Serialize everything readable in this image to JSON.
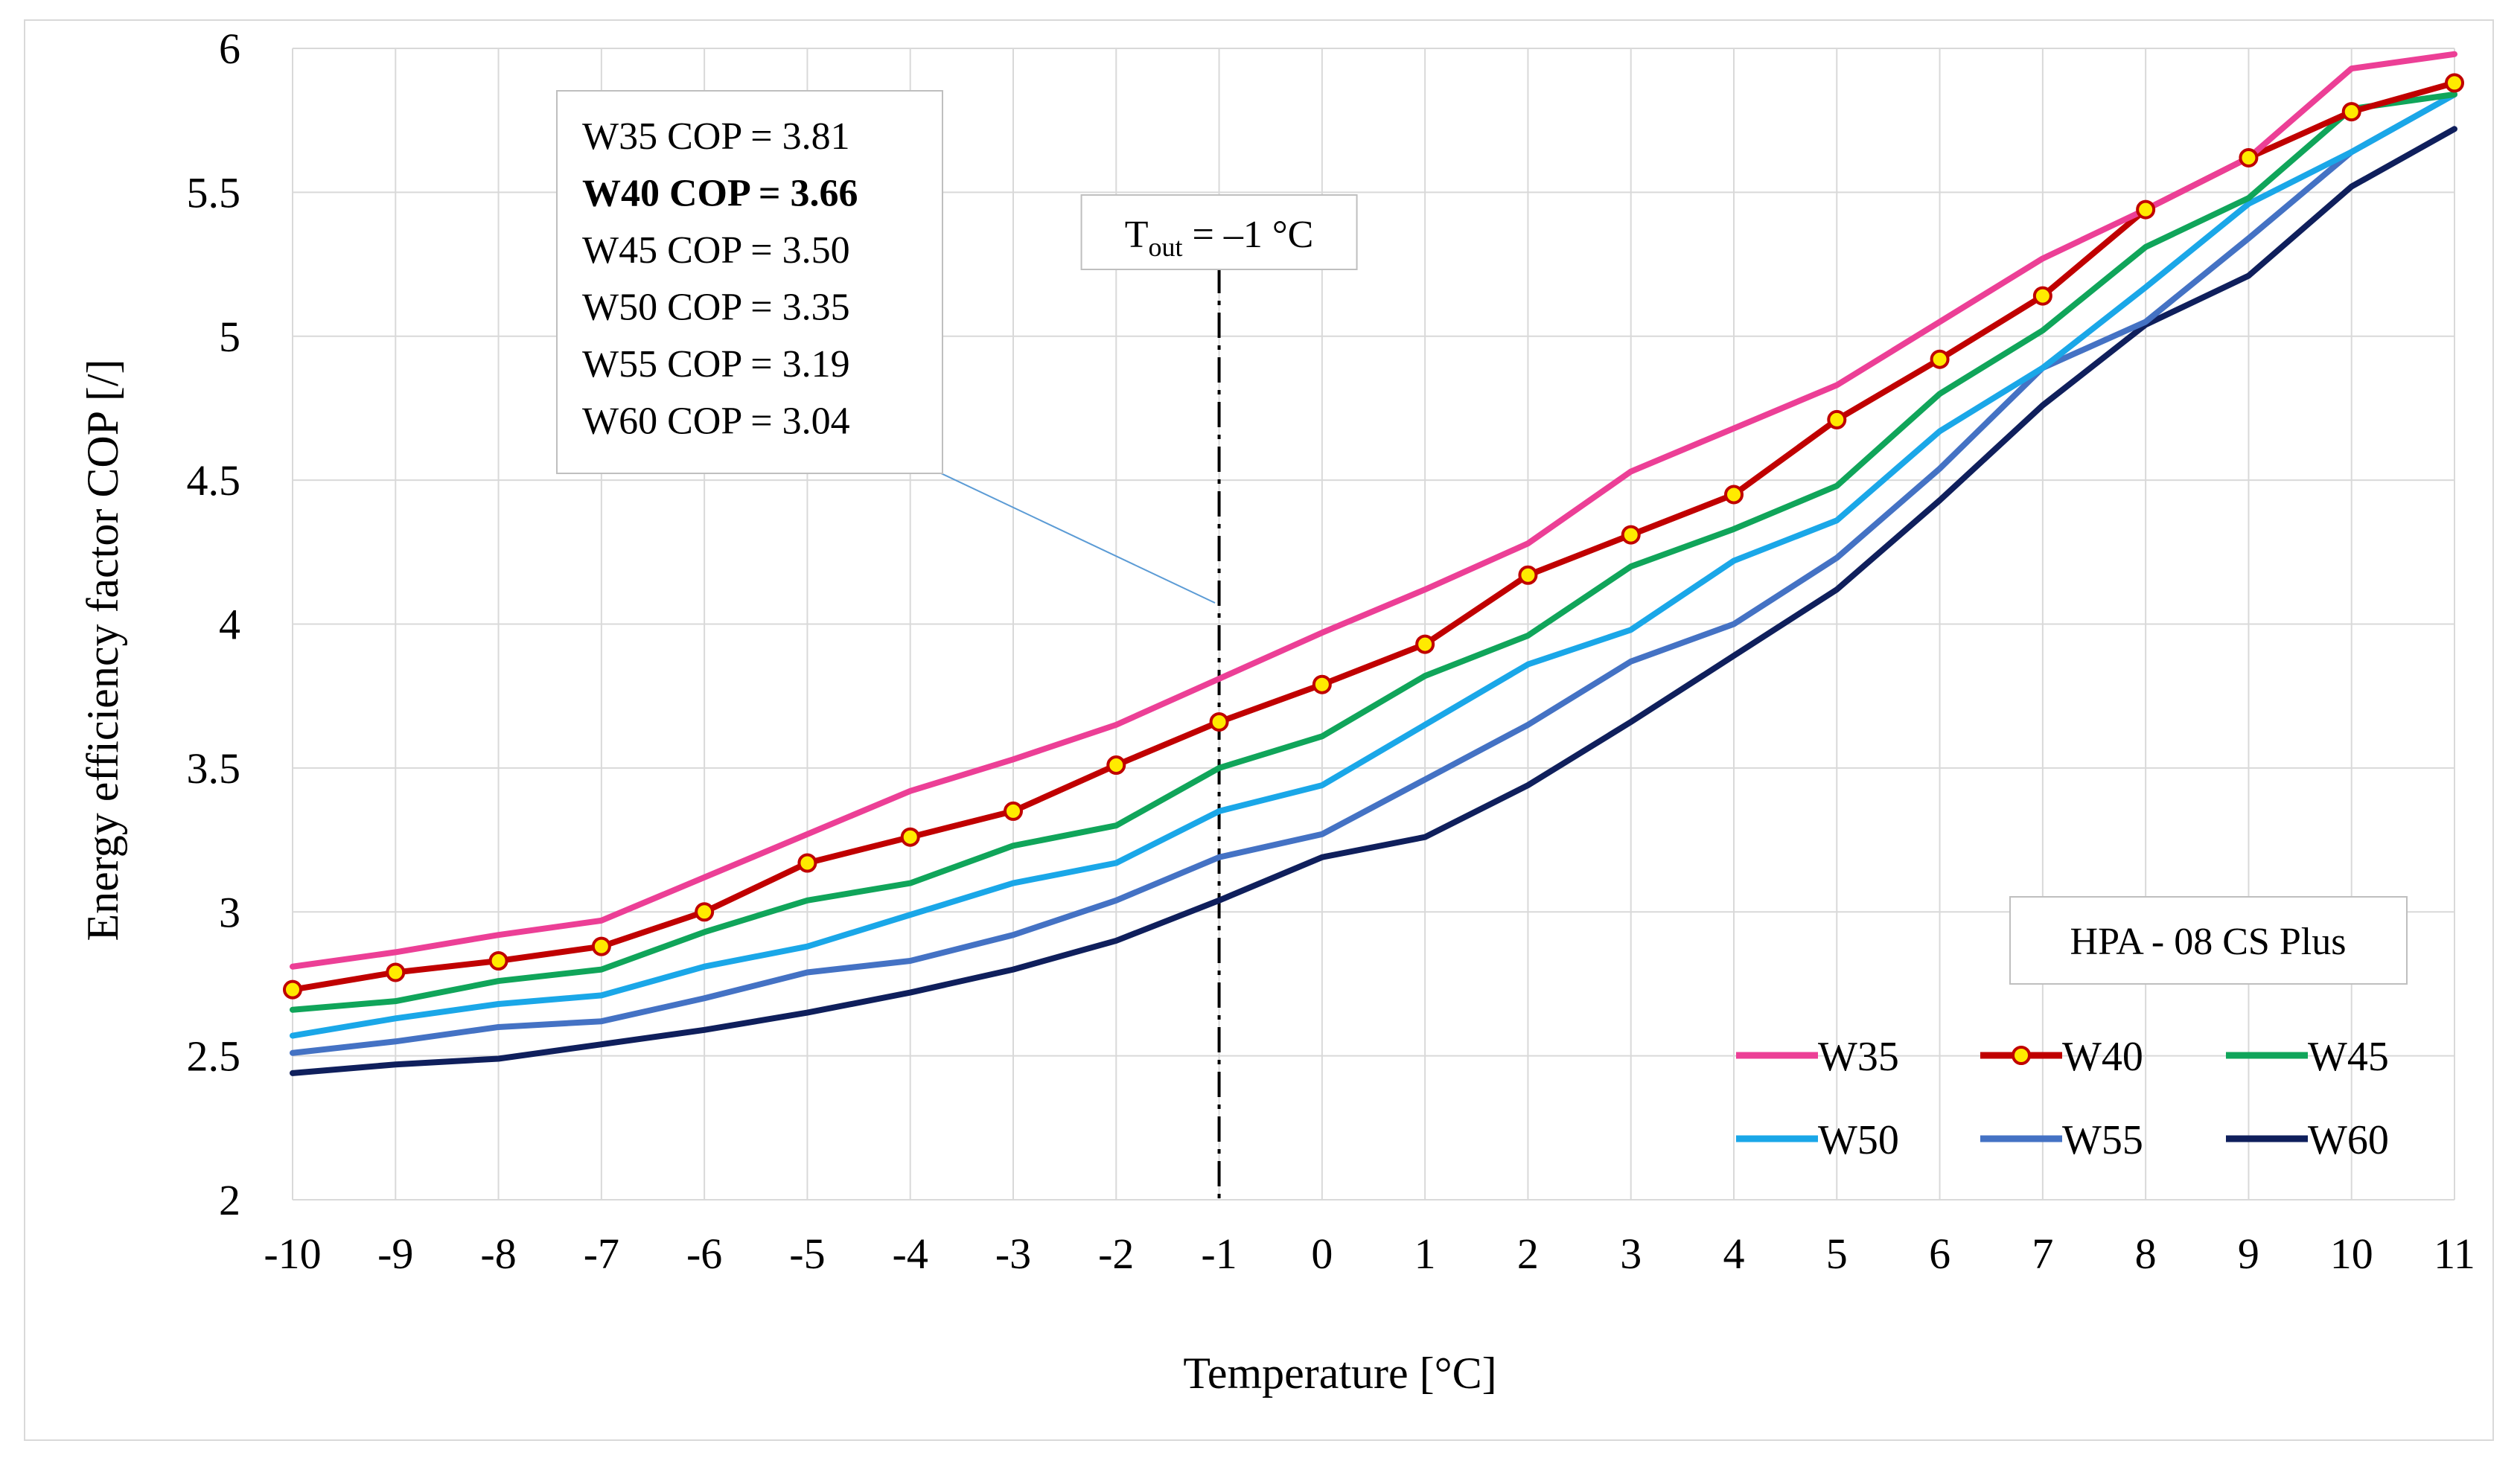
{
  "chart_data": {
    "type": "line",
    "title": "",
    "xlabel": "Temperature [°C]",
    "ylabel": "Energy efficiency factor COP [/]",
    "x": [
      -10,
      -9,
      -8,
      -7,
      -6,
      -5,
      -4,
      -3,
      -2,
      -1,
      0,
      1,
      2,
      3,
      4,
      5,
      6,
      7,
      8,
      9,
      10,
      11
    ],
    "x_tick_labels": [
      "-10",
      "-9",
      "-8",
      "-7",
      "-6",
      "-5",
      "-4",
      "-3",
      "-2",
      "-1",
      "0",
      "1",
      "2",
      "3",
      "4",
      "5",
      "6",
      "7",
      "8",
      "9",
      "10",
      "11"
    ],
    "ylim": [
      2,
      6
    ],
    "y_ticks": [
      2,
      2.5,
      3,
      3.5,
      4,
      4.5,
      5,
      5.5,
      6
    ],
    "y_tick_labels": [
      "2",
      "2.5",
      "3",
      "3.5",
      "4",
      "4.5",
      "5",
      "5.5",
      "6"
    ],
    "grid": true,
    "legend_position": "bottom-right",
    "series": [
      {
        "name": "W35",
        "color": "#ec3f96",
        "markers": false,
        "values": [
          2.81,
          2.86,
          2.92,
          2.97,
          3.12,
          3.27,
          3.42,
          3.53,
          3.65,
          3.81,
          3.97,
          4.12,
          4.28,
          4.53,
          4.68,
          4.83,
          5.05,
          5.27,
          5.44,
          5.62,
          5.93,
          5.98
        ]
      },
      {
        "name": "W40",
        "color": "#c00000",
        "markers": true,
        "marker_color": "#ffea00",
        "values": [
          2.73,
          2.79,
          2.83,
          2.88,
          3.0,
          3.17,
          3.26,
          3.35,
          3.51,
          3.66,
          3.79,
          3.93,
          4.17,
          4.31,
          4.45,
          4.71,
          4.92,
          5.14,
          5.44,
          5.62,
          5.78,
          5.88
        ]
      },
      {
        "name": "W45",
        "color": "#10a55a",
        "markers": false,
        "values": [
          2.66,
          2.69,
          2.76,
          2.8,
          2.93,
          3.04,
          3.1,
          3.23,
          3.3,
          3.5,
          3.61,
          3.82,
          3.96,
          4.2,
          4.33,
          4.48,
          4.8,
          5.02,
          5.31,
          5.48,
          5.79,
          5.84
        ]
      },
      {
        "name": "W50",
        "color": "#1aa7e8",
        "markers": false,
        "values": [
          2.57,
          2.63,
          2.68,
          2.71,
          2.81,
          2.88,
          2.99,
          3.1,
          3.17,
          3.35,
          3.44,
          3.65,
          3.86,
          3.98,
          4.22,
          4.36,
          4.67,
          4.89,
          5.17,
          5.46,
          5.64,
          5.84
        ]
      },
      {
        "name": "W55",
        "color": "#4472c4",
        "markers": false,
        "values": [
          2.51,
          2.55,
          2.6,
          2.62,
          2.7,
          2.79,
          2.83,
          2.92,
          3.04,
          3.19,
          3.27,
          3.46,
          3.65,
          3.87,
          4.0,
          4.23,
          4.54,
          4.89,
          5.05,
          5.34,
          5.64,
          5.84
        ]
      },
      {
        "name": "W60",
        "color": "#0f1f5c",
        "markers": false,
        "values": [
          2.44,
          2.47,
          2.49,
          2.54,
          2.59,
          2.65,
          2.72,
          2.8,
          2.9,
          3.04,
          3.19,
          3.26,
          3.44,
          3.66,
          3.89,
          4.12,
          4.43,
          4.76,
          5.04,
          5.21,
          5.52,
          5.72
        ]
      }
    ],
    "reference_line": {
      "x": -1,
      "label_main": "T",
      "label_sub": "out",
      "label_rest": " = –1 °C"
    },
    "info_box": {
      "lines": [
        {
          "text": "W35 COP = 3.81",
          "bold": false
        },
        {
          "text": "W40 COP = 3.66",
          "bold": true
        },
        {
          "text": "W45 COP = 3.50",
          "bold": false
        },
        {
          "text": "W50 COP = 3.35",
          "bold": false
        },
        {
          "text": "W55 COP = 3.19",
          "bold": false
        },
        {
          "text": "W60 COP = 3.04",
          "bold": false
        }
      ]
    },
    "model_label": "HPA - 08 CS Plus"
  }
}
